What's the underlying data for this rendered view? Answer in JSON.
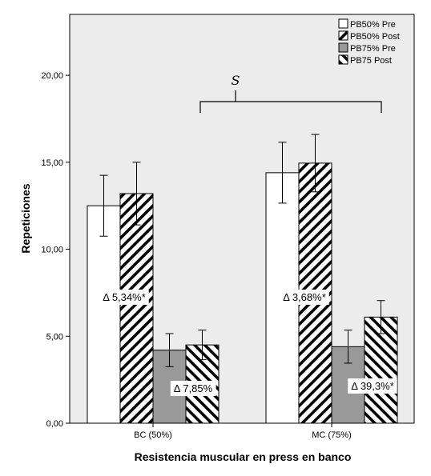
{
  "chart_data": {
    "type": "bar",
    "title": "",
    "xlabel": "Resistencia muscular en press en banco",
    "ylabel": "Repeticiones",
    "ylim": [
      0,
      23.5
    ],
    "yticks": [
      0,
      5,
      10,
      15,
      20
    ],
    "ytick_labels": [
      "0,00",
      "5,00",
      "10,00",
      "15,00",
      "20,00"
    ],
    "categories": [
      "BC (50%)",
      "MC (75%)"
    ],
    "grid": false,
    "legend_position": "top-right",
    "series": [
      {
        "name": "PB50% Pre",
        "values": [
          12.5,
          14.4
        ],
        "errors": [
          1.75,
          1.75
        ],
        "fill": "white"
      },
      {
        "name": "PB50% Post",
        "values": [
          13.2,
          14.95
        ],
        "errors": [
          1.8,
          1.65
        ],
        "fill": "hatch-forward"
      },
      {
        "name": "PB75% Pre",
        "values": [
          4.2,
          4.4
        ],
        "errors": [
          0.95,
          0.95
        ],
        "fill": "gray"
      },
      {
        "name": "PB75 Post",
        "values": [
          4.5,
          6.1
        ],
        "errors": [
          0.85,
          0.95
        ],
        "fill": "hatch-back"
      }
    ],
    "annotations": [
      {
        "text": "Δ 5,34%*",
        "group": 0
      },
      {
        "text": "Δ 7,85%",
        "group": 0
      },
      {
        "text": "Δ 3,68%*",
        "group": 1
      },
      {
        "text": "Δ 39,3%*",
        "group": 1
      }
    ],
    "significance": {
      "label": "S"
    }
  },
  "colors": {
    "plot_background": "#ececec",
    "gray_bar": "#999999",
    "stroke": "#000000"
  }
}
